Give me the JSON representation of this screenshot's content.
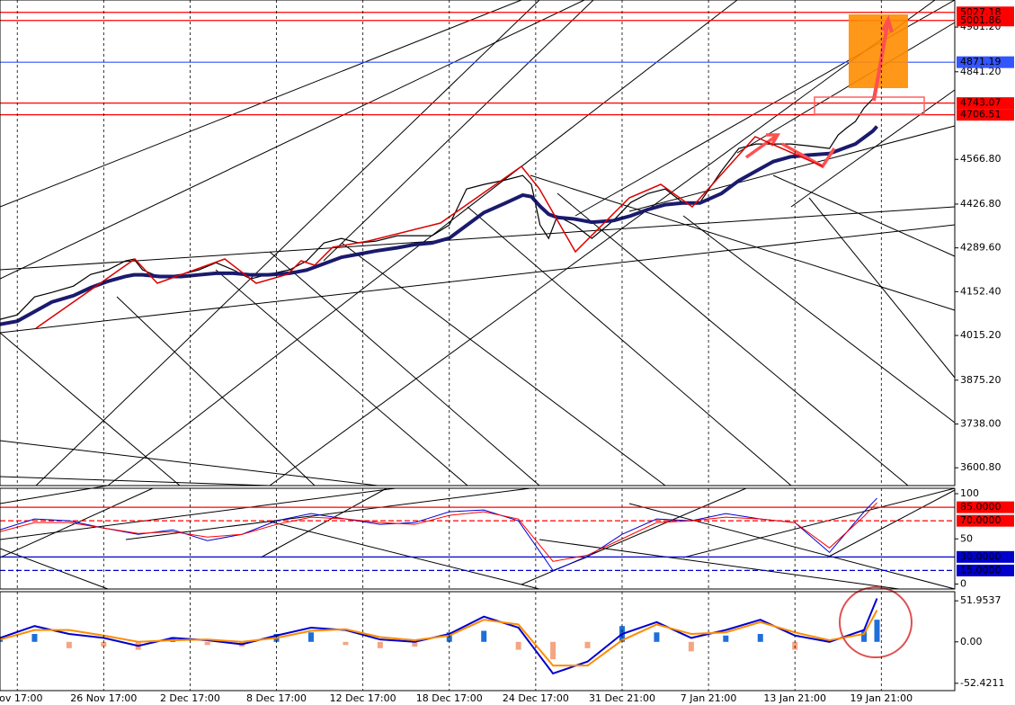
{
  "chart_data": [
    {
      "type": "line",
      "xlim": [
        0,
        221
      ],
      "ylim": [
        3545,
        5066
      ],
      "xticks": [
        {
          "value": 4,
          "label": "Nov 17:00"
        },
        {
          "value": 24,
          "label": "26 Nov 17:00"
        },
        {
          "value": 44,
          "label": "2 Dec 17:00"
        },
        {
          "value": 64,
          "label": "8 Dec 17:00"
        },
        {
          "value": 84,
          "label": "12 Dec 17:00"
        },
        {
          "value": 104,
          "label": "18 Dec 17:00"
        },
        {
          "value": 124,
          "label": "24 Dec 17:00"
        },
        {
          "value": 144,
          "label": "31 Dec 21:00"
        },
        {
          "value": 164,
          "label": "7 Jan 21:00"
        },
        {
          "value": 184,
          "label": "13 Jan 21:00"
        },
        {
          "value": 204,
          "label": "19 Jan 21:00"
        }
      ],
      "yticks": [
        {
          "value": 4981.2,
          "label": "4981.20"
        },
        {
          "value": 4841.2,
          "label": "4841.20"
        },
        {
          "value": 4566.8,
          "label": "4566.80"
        },
        {
          "value": 4426.8,
          "label": "4426.80"
        },
        {
          "value": 4289.6,
          "label": "4289.60"
        },
        {
          "value": 4152.4,
          "label": "4152.40"
        },
        {
          "value": 4015.2,
          "label": "4015.20"
        },
        {
          "value": 3875.2,
          "label": "3875.20"
        },
        {
          "value": 3738,
          "label": "3738.00"
        },
        {
          "value": 3600.8,
          "label": "3600.80"
        }
      ],
      "levels": [
        {
          "value": 5027.18,
          "label": "5027.18",
          "color": "#ff0000"
        },
        {
          "value": 5001.86,
          "label": "5001.86",
          "color": "#ff0000"
        },
        {
          "value": 4871.19,
          "label": "4871.19",
          "color": "#3355ff"
        },
        {
          "value": 4743.07,
          "label": "4743.07",
          "color": "#ff0000"
        },
        {
          "value": 4706.51,
          "label": "4706.51",
          "color": "#ff0000"
        }
      ],
      "x": [
        0,
        4,
        8,
        12,
        17,
        21,
        25,
        29,
        31,
        33,
        37,
        42,
        46,
        50,
        54,
        58,
        62,
        67,
        71,
        75,
        79,
        83,
        87,
        92,
        96,
        100,
        104,
        108,
        112,
        117,
        121,
        123,
        125,
        127,
        129,
        133,
        137,
        142,
        146,
        150,
        154,
        158,
        162,
        167,
        171,
        175,
        179,
        183,
        187,
        192,
        194,
        196,
        198,
        200,
        202,
        203
      ],
      "series": [
        {
          "color": "#000000",
          "width": 1.2,
          "values": [
            4065.6,
            4079.7,
            4136.0,
            4150.1,
            4169.8,
            4206.5,
            4220.6,
            4248.7,
            4254.4,
            4220.6,
            4198.0,
            4206.5,
            4220.6,
            4243.1,
            4220.6,
            4192.4,
            4206.5,
            4220.6,
            4248.7,
            4305.1,
            4319.2,
            4305.1,
            4310.7,
            4327.6,
            4327.6,
            4327.6,
            4361.4,
            4474.1,
            4488.2,
            4502.3,
            4516.4,
            4488.2,
            4361.4,
            4319.2,
            4389.6,
            4361.4,
            4319.2,
            4375.5,
            4431.8,
            4460.0,
            4474.1,
            4431.8,
            4431.8,
            4530.4,
            4600.9,
            4615.0,
            4615.0,
            4615.0,
            4609.3,
            4600.9,
            4643.1,
            4665.7,
            4685.4,
            4727.7,
            4755.8,
            4826.3
          ]
        },
        {
          "color": "#1a1a6e",
          "width": 4,
          "values": [
            4050,
            4060,
            4090,
            4120,
            4140,
            4165,
            4185,
            4200,
            4205,
            4205,
            4200,
            4200,
            4205,
            4210,
            4210,
            4205,
            4205,
            4210,
            4220,
            4240,
            4260,
            4270,
            4280,
            4290,
            4300,
            4305,
            4320,
            4360,
            4400,
            4430,
            4455,
            4450,
            4420,
            4395,
            4385,
            4380,
            4370,
            4375,
            4390,
            4410,
            4425,
            4430,
            4430,
            4460,
            4500,
            4530,
            4560,
            4575,
            4580,
            4585,
            4595,
            4605,
            4615,
            4635,
            4655,
            4670
          ]
        }
      ]
    },
    {
      "type": "line",
      "xlim": [
        0,
        221
      ],
      "ylim": [
        -5.5,
        106
      ],
      "yticks": [
        100,
        50,
        0
      ],
      "levels": [
        {
          "value": 85,
          "label": "85.0000",
          "color": "#ff0000"
        },
        {
          "value": 70,
          "label": "70.0000",
          "color": "#ff0000"
        },
        {
          "value": 30,
          "label": "30.0000",
          "color": "#0000cc"
        },
        {
          "value": 15,
          "label": "15.0000",
          "color": "#0000cc"
        }
      ],
      "x": [
        0,
        8,
        16,
        24,
        32,
        40,
        48,
        56,
        64,
        72,
        80,
        88,
        96,
        104,
        112,
        120,
        128,
        136,
        144,
        152,
        160,
        168,
        176,
        184,
        192,
        200,
        203
      ],
      "series": [
        {
          "color": "#0000cc",
          "width": 1,
          "values": [
            60,
            72,
            70,
            62,
            55,
            60,
            48,
            55,
            70,
            78,
            72,
            66,
            68,
            80,
            82,
            70,
            15,
            30,
            55,
            72,
            70,
            78,
            72,
            68,
            35,
            80,
            95
          ]
        },
        {
          "color": "#ff0000",
          "width": 1,
          "values": [
            58,
            68,
            68,
            62,
            56,
            58,
            52,
            55,
            66,
            74,
            72,
            68,
            66,
            76,
            80,
            72,
            25,
            32,
            50,
            68,
            70,
            74,
            72,
            68,
            40,
            75,
            90
          ]
        }
      ]
    },
    {
      "type": "macd",
      "xlim": [
        0,
        221
      ],
      "ylim": [
        -61.7,
        63.5
      ],
      "yticks": [
        51.9537,
        {
          "value": 0,
          "label": "0.00"
        },
        -52.4211
      ],
      "pos_color": "#1e6fd9",
      "neg_color": "#f4a582",
      "x": [
        0,
        8,
        16,
        24,
        32,
        40,
        48,
        56,
        64,
        72,
        80,
        88,
        96,
        104,
        112,
        120,
        128,
        136,
        144,
        152,
        160,
        168,
        176,
        184,
        192,
        200,
        203
      ],
      "histogram": [
        4,
        10,
        -8,
        -6,
        -10,
        6,
        -4,
        -6,
        10,
        12,
        -4,
        -8,
        -6,
        12,
        14,
        -10,
        -22,
        -8,
        20,
        12,
        -12,
        8,
        10,
        -10,
        3,
        15,
        28
      ],
      "series": [
        {
          "color": "#0000cc",
          "width": 2,
          "values": [
            5,
            20,
            10,
            5,
            -5,
            5,
            2,
            -3,
            8,
            18,
            15,
            3,
            0,
            10,
            32,
            18,
            -40,
            -25,
            10,
            25,
            5,
            15,
            28,
            8,
            0,
            15,
            55
          ]
        },
        {
          "color": "#ff8c00",
          "width": 2,
          "values": [
            3,
            15,
            15,
            8,
            0,
            2,
            3,
            0,
            5,
            14,
            16,
            6,
            2,
            8,
            28,
            22,
            -30,
            -30,
            2,
            22,
            10,
            12,
            25,
            12,
            2,
            10,
            40
          ]
        }
      ]
    }
  ]
}
